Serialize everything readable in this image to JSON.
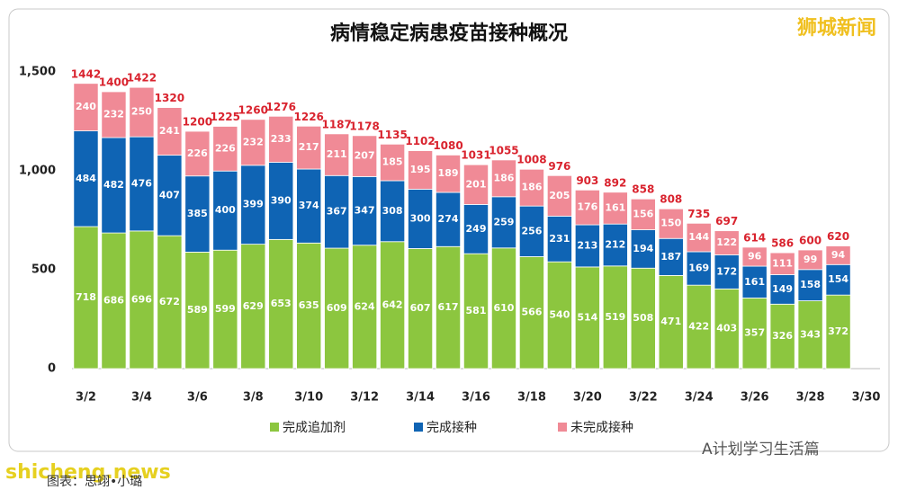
{
  "chart_data": {
    "type": "stacked_bar",
    "title": "病情稳定病患疫苗接种概况",
    "categories": [
      "3/2",
      null,
      "3/4",
      null,
      "3/6",
      null,
      "3/8",
      null,
      "3/10",
      null,
      "3/12",
      null,
      "3/14",
      null,
      "3/16",
      null,
      "3/18",
      null,
      "3/20",
      null,
      "3/22",
      null,
      "3/24",
      null,
      "3/26",
      null,
      "3/28",
      null,
      "3/30"
    ],
    "series": [
      {
        "name": "完成追加剂",
        "color": "#8cc63f",
        "values": [
          718,
          686,
          696,
          672,
          589,
          599,
          629,
          653,
          635,
          609,
          624,
          642,
          607,
          617,
          581,
          610,
          566,
          540,
          514,
          519,
          508,
          471,
          422,
          403,
          357,
          326,
          343,
          372,
          null
        ]
      },
      {
        "name": "完成接种",
        "color": "#0f64b4",
        "values": [
          484,
          482,
          476,
          407,
          385,
          400,
          399,
          390,
          374,
          367,
          347,
          308,
          300,
          274,
          249,
          259,
          256,
          231,
          213,
          212,
          194,
          187,
          169,
          172,
          161,
          149,
          158,
          154,
          null
        ]
      },
      {
        "name": "未完成接种",
        "color": "#f08a96",
        "values": [
          240,
          232,
          250,
          241,
          226,
          226,
          232,
          233,
          217,
          211,
          207,
          185,
          195,
          189,
          201,
          186,
          186,
          205,
          176,
          161,
          156,
          150,
          144,
          122,
          96,
          111,
          99,
          94,
          null
        ]
      }
    ],
    "totals": [
      1442,
      1400,
      1422,
      1320,
      1200,
      1225,
      1260,
      1276,
      1226,
      1187,
      1178,
      1135,
      1102,
      1080,
      1031,
      1055,
      1008,
      976,
      903,
      892,
      858,
      808,
      735,
      697,
      614,
      586,
      600,
      620,
      null
    ],
    "ylim": [
      0,
      1500
    ],
    "yticks": [
      0,
      500,
      {
        "value": 1000,
        "label": "1,000"
      },
      {
        "value": 1500,
        "label": "1,500"
      }
    ],
    "legend": "bottom"
  },
  "overlay": {
    "brand": "狮城新闻",
    "site": "shicheng.news",
    "credit": "图表：思翊•小璐",
    "account": "A计划学习生活篇"
  }
}
